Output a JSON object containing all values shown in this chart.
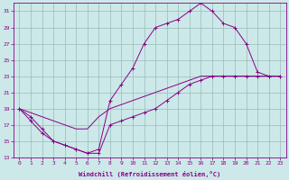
{
  "xlabel": "Windchill (Refroidissement éolien,°C)",
  "xlim": [
    -0.5,
    23.5
  ],
  "ylim": [
    13,
    32
  ],
  "xticks": [
    0,
    1,
    2,
    3,
    4,
    5,
    6,
    7,
    8,
    9,
    10,
    11,
    12,
    13,
    14,
    15,
    16,
    17,
    18,
    19,
    20,
    21,
    22,
    23
  ],
  "yticks": [
    13,
    15,
    17,
    19,
    21,
    23,
    25,
    27,
    29,
    31
  ],
  "bg_color": "#cce8e8",
  "line_color": "#880088",
  "grid_color": "#99bbbb",
  "line1_x": [
    0,
    1,
    2,
    3,
    4,
    5,
    6,
    7,
    8,
    9,
    10,
    11,
    12,
    13,
    14,
    15,
    16,
    17,
    18,
    19,
    20,
    21,
    22,
    23
  ],
  "line1_y": [
    19,
    18,
    16.5,
    15,
    14.5,
    14,
    13.5,
    14,
    20,
    22,
    24,
    27,
    29,
    29.5,
    30,
    31,
    32,
    31,
    29.5,
    29,
    27,
    23.5,
    23,
    23
  ],
  "line2_x": [
    0,
    1,
    2,
    3,
    4,
    5,
    6,
    7,
    8,
    9,
    10,
    11,
    12,
    13,
    14,
    15,
    16,
    17,
    18,
    19,
    20,
    21,
    22,
    23
  ],
  "line2_y": [
    19,
    18.5,
    18,
    17.5,
    17,
    16.5,
    16.5,
    18,
    19,
    19.5,
    20,
    20.5,
    21,
    21.5,
    22,
    22.5,
    23,
    23,
    23,
    23,
    23,
    23,
    23,
    23
  ],
  "line3_x": [
    0,
    1,
    2,
    3,
    4,
    5,
    6,
    7,
    8,
    9,
    10,
    11,
    12,
    13,
    14,
    15,
    16,
    17,
    18,
    19,
    20,
    21,
    22,
    23
  ],
  "line3_y": [
    19,
    17.5,
    16,
    15,
    14.5,
    14,
    13.5,
    13.5,
    17,
    17.5,
    18,
    18.5,
    19,
    20,
    21,
    22,
    22.5,
    23,
    23,
    23,
    23,
    23,
    23,
    23
  ]
}
